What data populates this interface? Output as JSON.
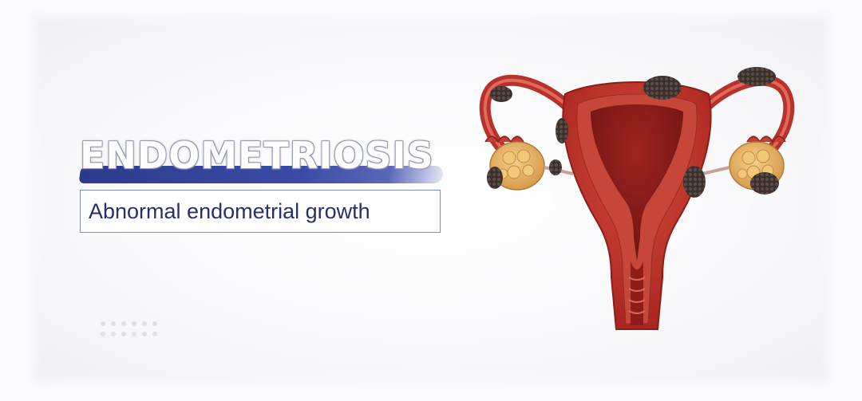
{
  "title": "ENDOMETRIOSIS",
  "subtitle": "Abnormal endometrial growth",
  "colors": {
    "brush": "#2c3a8c",
    "subtitle_text": "#27306a",
    "box_border": "#7d8fb8",
    "tissue": "#b8322c",
    "tissue_dark": "#7e1a18",
    "ovary": "#e9b765",
    "lesion": "#3a2f2c"
  },
  "illustration": "uterus-illustration"
}
